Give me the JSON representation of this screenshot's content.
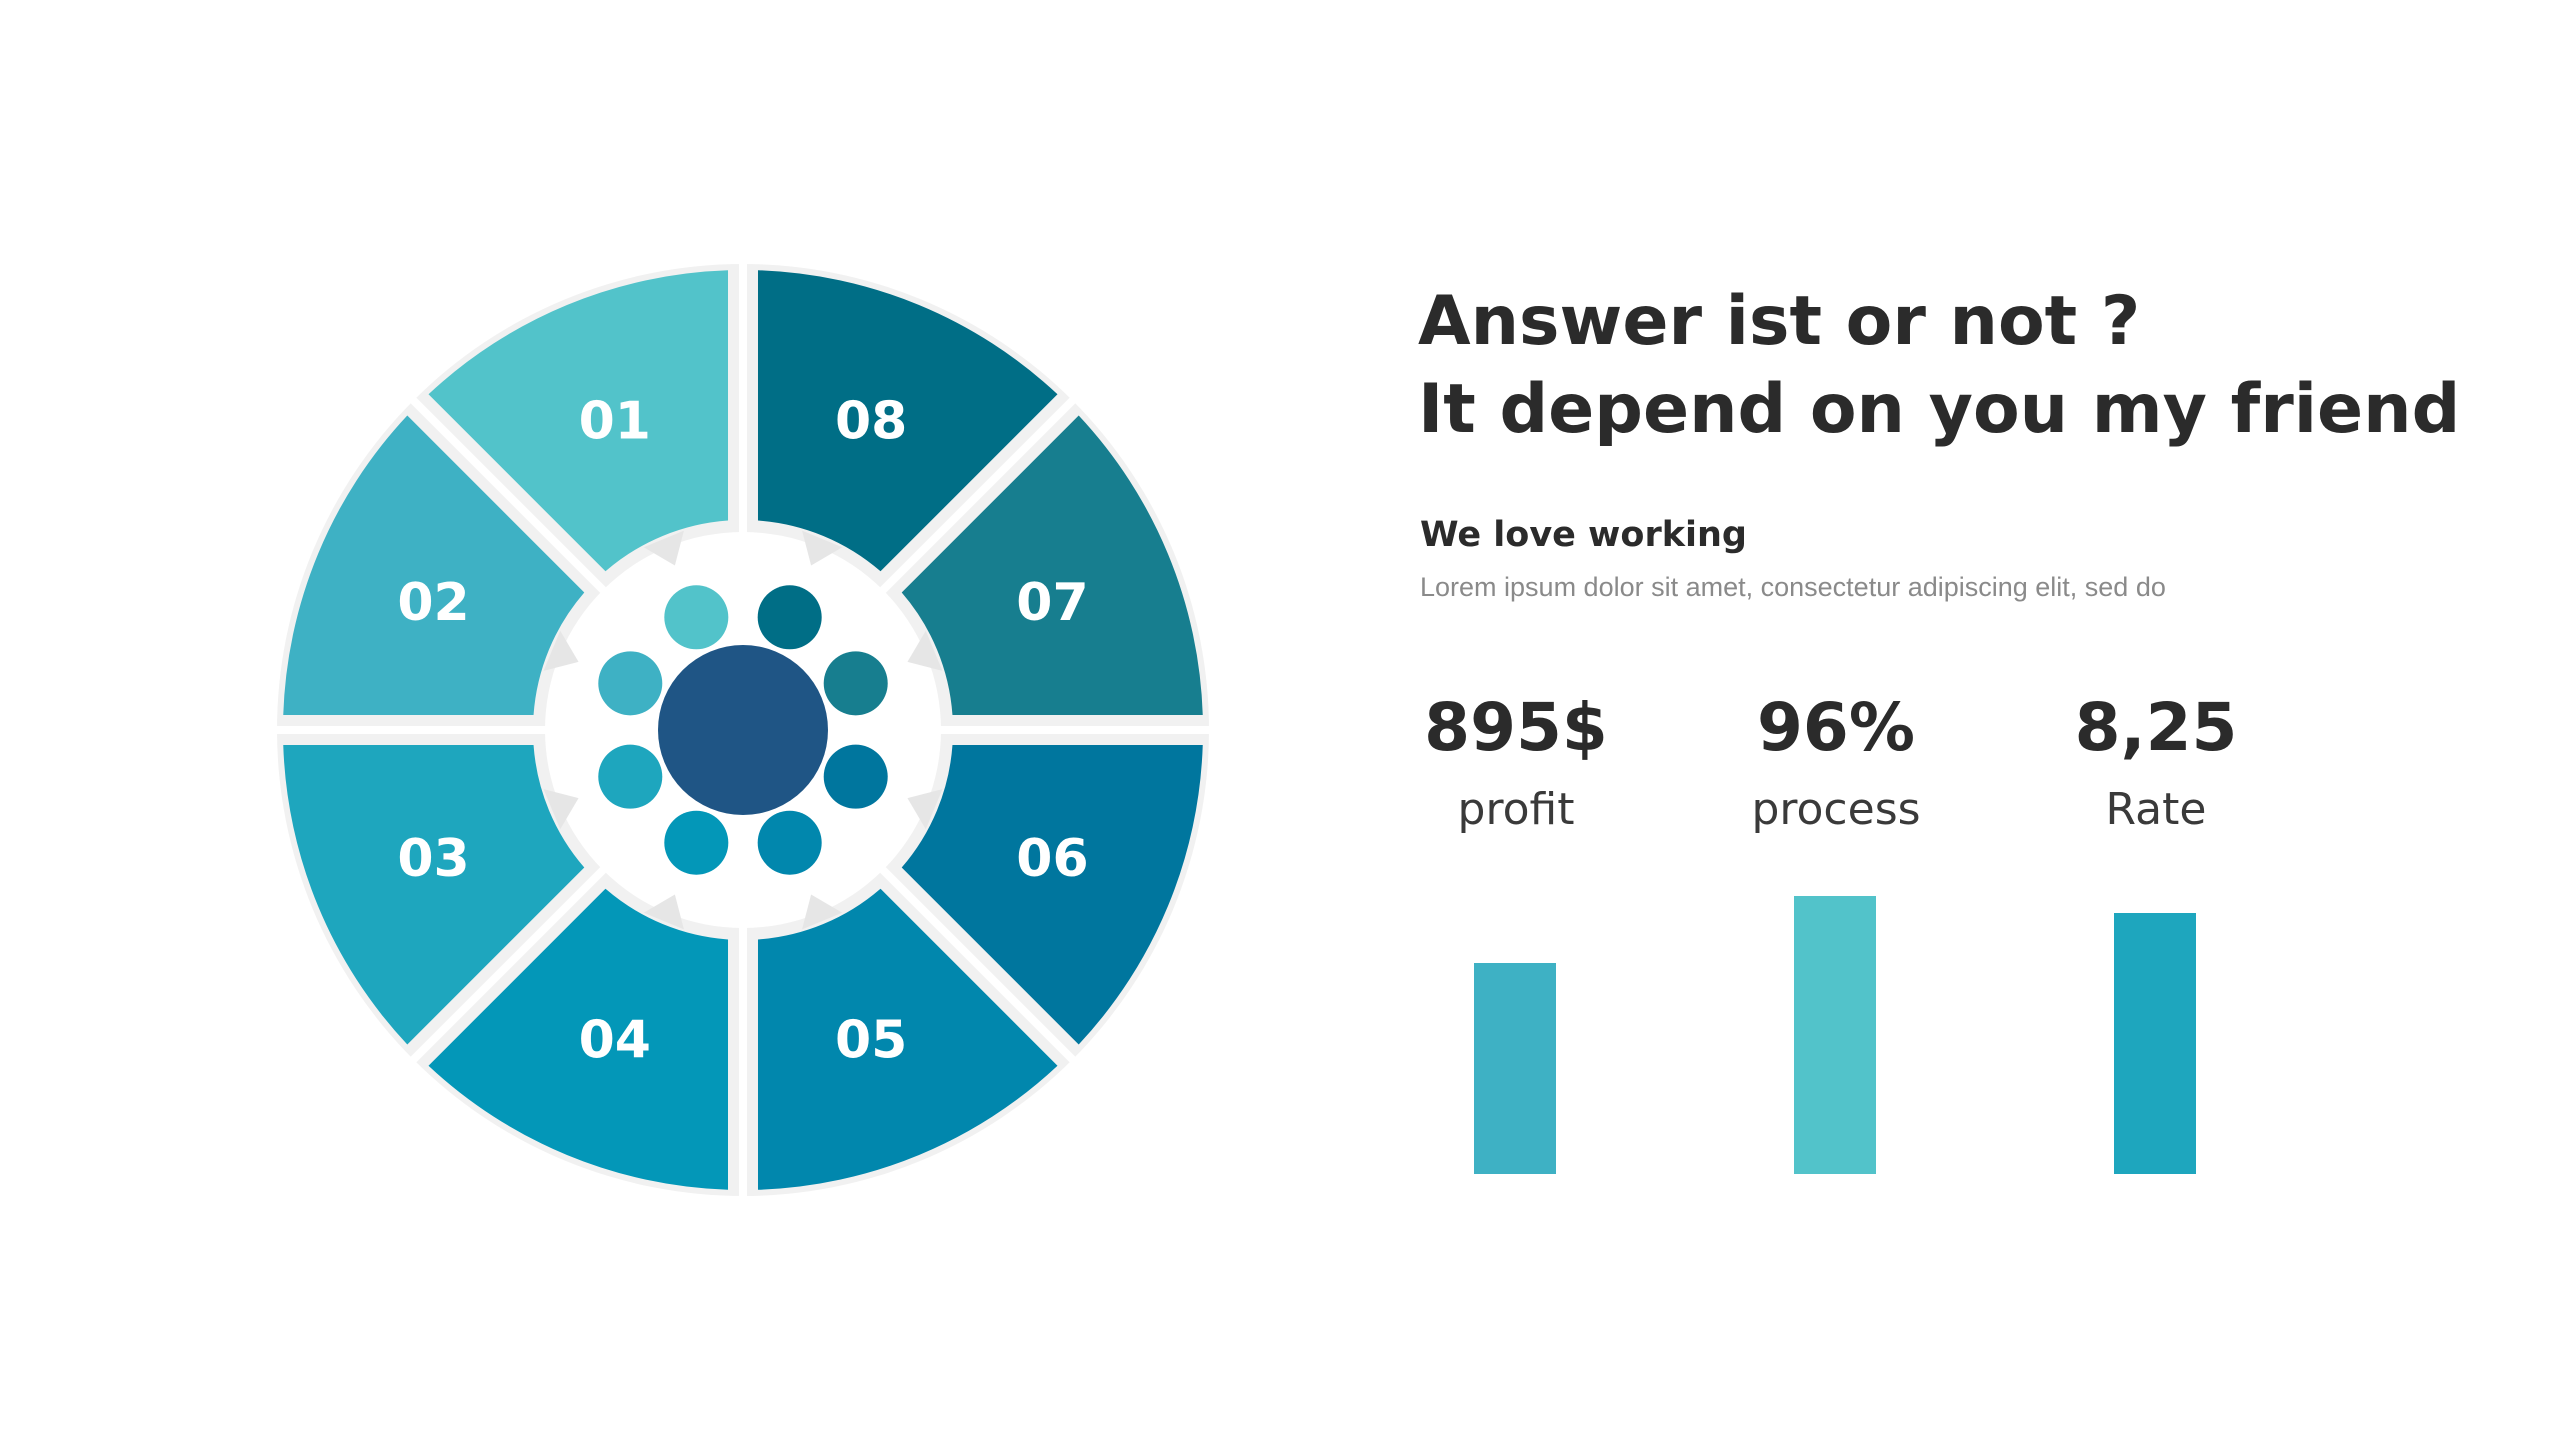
{
  "heading": {
    "line1": "Answer ist or not ?",
    "line2": "It depend on you my friend"
  },
  "subheading": "We love working",
  "body": "Lorem ipsum dolor sit amet, consectetur adipiscing elit, sed do",
  "wheel": {
    "segments": [
      {
        "label": "01",
        "color": "#52c3ca"
      },
      {
        "label": "02",
        "color": "#3eb1c4"
      },
      {
        "label": "03",
        "color": "#1ea6be"
      },
      {
        "label": "04",
        "color": "#0397b8"
      },
      {
        "label": "05",
        "color": "#0187ad"
      },
      {
        "label": "06",
        "color": "#00769e"
      },
      {
        "label": "07",
        "color": "#177e8f"
      },
      {
        "label": "08",
        "color": "#006e86"
      }
    ],
    "center_color": "#1f5585",
    "background_color": "#f1f1f1"
  },
  "stats": [
    {
      "value": "895$",
      "label": "profit",
      "bar_level": 0.76,
      "bar_color": "#3eb1c4"
    },
    {
      "value": "96%",
      "label": "process",
      "bar_level": 1.0,
      "bar_color": "#52c3ca"
    },
    {
      "value": "8,25",
      "label": "Rate",
      "bar_level": 0.94,
      "bar_color": "#1ea6be"
    }
  ]
}
